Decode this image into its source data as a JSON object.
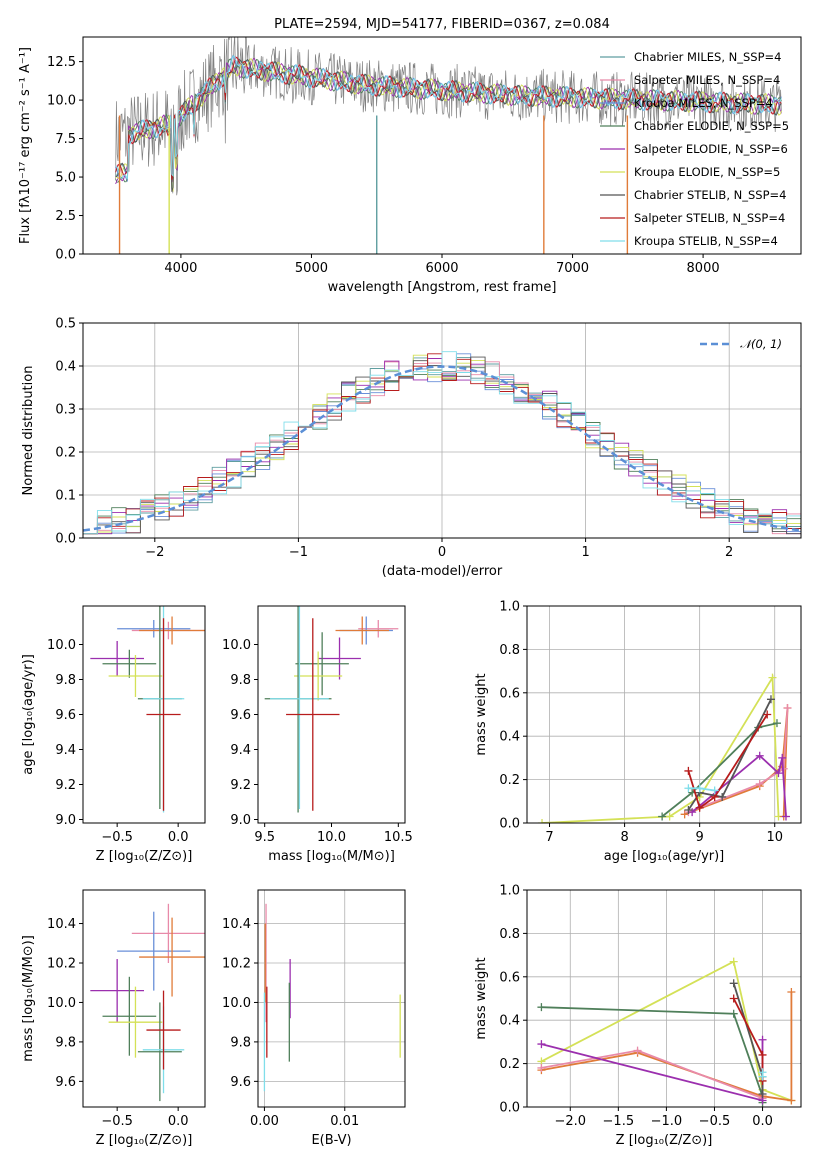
{
  "chart_data": [
    {
      "type": "line",
      "title": "PLATE=2594, MJD=54177, FIBERID=0367, z=0.084",
      "xlabel": "wavelength [Angstrom, rest frame]",
      "ylabel": "Flux [fλ10⁻¹⁷ erg cm⁻² s⁻¹ A⁻¹]",
      "xlim": [
        3250,
        8750
      ],
      "ylim": [
        0,
        14.1
      ],
      "xticks": [
        "4000",
        "5000",
        "6000",
        "7000",
        "8000"
      ],
      "yticks": [
        "0.0",
        "2.5",
        "5.0",
        "7.5",
        "10.0",
        "12.5"
      ],
      "legend": [
        {
          "name": "Chabrier MILES, N_SSP=4",
          "color": "#5f9ea0"
        },
        {
          "name": "Salpeter MILES, N_SSP=4",
          "color": "#e88aa9"
        },
        {
          "name": "Kroupa MILES, N_SSP=4",
          "color": "#6a8fd8"
        },
        {
          "name": "Chabrier ELODIE, N_SSP=5",
          "color": "#4f7f5a"
        },
        {
          "name": "Salpeter ELODIE, N_SSP=6",
          "color": "#9b2fae"
        },
        {
          "name": "Kroupa ELODIE, N_SSP=5",
          "color": "#d4e157"
        },
        {
          "name": "Chabrier STELIB, N_SSP=4",
          "color": "#555555"
        },
        {
          "name": "Salpeter STELIB, N_SSP=4",
          "color": "#b71c1c"
        },
        {
          "name": "Kroupa STELIB, N_SSP=4",
          "color": "#80deea"
        }
      ],
      "legend_position": "top-right"
    },
    {
      "type": "line",
      "xlabel": "(data-model)/error",
      "ylabel": "Normed distribution",
      "xlim": [
        -2.5,
        2.5
      ],
      "ylim": [
        0,
        0.5
      ],
      "xticks": [
        "−2",
        "−1",
        "0",
        "1",
        "2"
      ],
      "yticks": [
        "0.0",
        "0.1",
        "0.2",
        "0.3",
        "0.4",
        "0.5"
      ],
      "series": [
        {
          "name": "𝒩(0, 1)",
          "color": "#5b8fd6",
          "mean": 0,
          "sigma": 1
        }
      ],
      "legend_position": "top-right",
      "grid": true
    },
    {
      "type": "scatter",
      "xlabel": "Z [log₁₀(Z/Z⊙)]",
      "ylabel": "age  [log₁₀(age/yr)]",
      "xlim": [
        -0.78,
        0.22
      ],
      "ylim": [
        8.98,
        10.22
      ],
      "xticks": [
        "−0.5",
        "0.0"
      ],
      "yticks": [
        "9.0",
        "9.2",
        "9.4",
        "9.6",
        "9.8",
        "10.0"
      ],
      "points": [
        {
          "x": -0.08,
          "y": 10.08,
          "xerr": 0.3,
          "yerr": 0.05,
          "color": "#e88aa9"
        },
        {
          "x": -0.2,
          "y": 10.09,
          "xerr": 0.3,
          "yerr": 0.05,
          "color": "#6a8fd8"
        },
        {
          "x": -0.05,
          "y": 10.08,
          "xerr": 0.27,
          "yerr": 0.08,
          "color": "#e07b39"
        },
        {
          "x": -0.5,
          "y": 9.92,
          "xerr": 0.22,
          "yerr": 0.1,
          "color": "#9b2fae"
        },
        {
          "x": -0.4,
          "y": 9.89,
          "xerr": 0.22,
          "yerr": 0.08,
          "color": "#4f7f5a"
        },
        {
          "x": -0.35,
          "y": 9.82,
          "xerr": 0.22,
          "yerr": 0.12,
          "color": "#d4e157"
        },
        {
          "x": -0.15,
          "y": 9.69,
          "xerr": 0.18,
          "yerr": 0.63,
          "color": "#4f7f5a"
        },
        {
          "x": -0.12,
          "y": 9.69,
          "xerr": 0.17,
          "yerr": 0.65,
          "color": "#80deea"
        },
        {
          "x": -0.12,
          "y": 9.6,
          "xerr": 0.14,
          "yerr": 0.55,
          "color": "#b71c1c"
        }
      ]
    },
    {
      "type": "scatter",
      "xlabel": "mass [log₁₀(M/M⊙)]",
      "xlim": [
        9.45,
        10.55
      ],
      "ylim": [
        8.98,
        10.22
      ],
      "xticks": [
        "9.5",
        "10.0",
        "10.5"
      ],
      "yticks": [
        "9.0",
        "9.2",
        "9.4",
        "9.6",
        "9.8",
        "10.0"
      ],
      "points": [
        {
          "x": 10.35,
          "y": 10.09,
          "xerr": 0.15,
          "yerr": 0.05,
          "color": "#e88aa9"
        },
        {
          "x": 10.26,
          "y": 10.08,
          "xerr": 0.2,
          "yerr": 0.08,
          "color": "#6a8fd8"
        },
        {
          "x": 10.23,
          "y": 10.08,
          "xerr": 0.2,
          "yerr": 0.08,
          "color": "#e07b39"
        },
        {
          "x": 10.06,
          "y": 9.92,
          "xerr": 0.16,
          "yerr": 0.12,
          "color": "#9b2fae"
        },
        {
          "x": 9.93,
          "y": 9.89,
          "xerr": 0.2,
          "yerr": 0.18,
          "color": "#4f7f5a"
        },
        {
          "x": 9.9,
          "y": 9.82,
          "xerr": 0.18,
          "yerr": 0.14,
          "color": "#d4e157"
        },
        {
          "x": 9.75,
          "y": 9.69,
          "xerr": 0.25,
          "yerr": 0.65,
          "color": "#4f7f5a"
        },
        {
          "x": 9.76,
          "y": 9.69,
          "xerr": 0.22,
          "yerr": 0.63,
          "color": "#80deea"
        },
        {
          "x": 9.86,
          "y": 9.6,
          "xerr": 0.2,
          "yerr": 0.55,
          "color": "#b71c1c"
        }
      ]
    },
    {
      "type": "line",
      "xlabel": "age  [log₁₀(age/yr)]",
      "ylabel": "mass weight",
      "xlim": [
        6.7,
        10.35
      ],
      "ylim": [
        0,
        1
      ],
      "xticks": [
        "7",
        "8",
        "9",
        "10"
      ],
      "yticks": [
        "0.0",
        "0.2",
        "0.4",
        "0.6",
        "0.8",
        "1.0"
      ],
      "grid": true,
      "series": [
        {
          "color": "#d4e157",
          "x": [
            6.9,
            8.6,
            9.0,
            9.97,
            10.05
          ],
          "y": [
            0.0,
            0.03,
            0.12,
            0.67,
            0.03
          ]
        },
        {
          "color": "#e07b39",
          "x": [
            8.8,
            9.8,
            10.1,
            10.17,
            10.12
          ],
          "y": [
            0.04,
            0.17,
            0.26,
            0.53,
            0.03
          ]
        },
        {
          "color": "#e88aa9",
          "x": [
            8.85,
            9.8,
            10.12,
            10.17
          ],
          "y": [
            0.05,
            0.18,
            0.25,
            0.53
          ]
        },
        {
          "color": "#9b2fae",
          "x": [
            8.9,
            9.8,
            10.05,
            10.1,
            10.15
          ],
          "y": [
            0.05,
            0.31,
            0.23,
            0.3,
            0.03
          ]
        },
        {
          "color": "#4f7f5a",
          "x": [
            8.5,
            8.9,
            9.78,
            10.03
          ],
          "y": [
            0.03,
            0.14,
            0.44,
            0.46
          ]
        },
        {
          "color": "#555555",
          "x": [
            8.85,
            9.0,
            9.3,
            9.95
          ],
          "y": [
            0.06,
            0.14,
            0.12,
            0.57
          ]
        },
        {
          "color": "#b71c1c",
          "x": [
            8.85,
            9.0,
            9.2,
            9.9
          ],
          "y": [
            0.24,
            0.07,
            0.12,
            0.5
          ]
        },
        {
          "color": "#80deea",
          "x": [
            8.85,
            9.0,
            9.2
          ],
          "y": [
            0.16,
            0.16,
            0.15
          ]
        }
      ]
    },
    {
      "type": "scatter",
      "xlabel": "Z [log₁₀(Z/Z⊙)]",
      "ylabel": "mass [log₁₀(M/M⊙)]",
      "xlim": [
        -0.78,
        0.22
      ],
      "ylim": [
        9.47,
        10.57
      ],
      "xticks": [
        "−0.5",
        "0.0"
      ],
      "yticks": [
        "9.6",
        "9.8",
        "10.0",
        "10.2",
        "10.4"
      ],
      "points": [
        {
          "x": -0.08,
          "y": 10.35,
          "xerr": 0.3,
          "yerr": 0.15,
          "color": "#e88aa9"
        },
        {
          "x": -0.2,
          "y": 10.26,
          "xerr": 0.3,
          "yerr": 0.2,
          "color": "#6a8fd8"
        },
        {
          "x": -0.05,
          "y": 10.23,
          "xerr": 0.27,
          "yerr": 0.2,
          "color": "#e07b39"
        },
        {
          "x": -0.5,
          "y": 10.06,
          "xerr": 0.22,
          "yerr": 0.16,
          "color": "#9b2fae"
        },
        {
          "x": -0.4,
          "y": 9.93,
          "xerr": 0.22,
          "yerr": 0.2,
          "color": "#4f7f5a"
        },
        {
          "x": -0.35,
          "y": 9.9,
          "xerr": 0.22,
          "yerr": 0.18,
          "color": "#d4e157"
        },
        {
          "x": -0.15,
          "y": 9.75,
          "xerr": 0.18,
          "yerr": 0.25,
          "color": "#4f7f5a"
        },
        {
          "x": -0.12,
          "y": 9.76,
          "xerr": 0.17,
          "yerr": 0.22,
          "color": "#80deea"
        },
        {
          "x": -0.12,
          "y": 9.86,
          "xerr": 0.14,
          "yerr": 0.2,
          "color": "#b71c1c"
        }
      ]
    },
    {
      "type": "scatter",
      "xlabel": "E(B-V)",
      "xlim": [
        -0.0008,
        0.0175
      ],
      "ylim": [
        9.47,
        10.57
      ],
      "xticks": [
        "0.00",
        "0.01"
      ],
      "yticks": [
        "9.6",
        "9.8",
        "10.0",
        "10.2",
        "10.4"
      ],
      "grid": true,
      "points": [
        {
          "x": 0.0002,
          "y": 10.2,
          "xerr": 0,
          "yerr": 0.3,
          "color": "#e88aa9"
        },
        {
          "x": 0.0001,
          "y": 10.2,
          "xerr": 0,
          "yerr": 0.2,
          "color": "#e07b39"
        },
        {
          "x": 0.0,
          "y": 9.8,
          "xerr": 0,
          "yerr": 0.25,
          "color": "#80deea"
        },
        {
          "x": 0.0003,
          "y": 9.9,
          "xerr": 0,
          "yerr": 0.18,
          "color": "#b71c1c"
        },
        {
          "x": 0.0032,
          "y": 10.07,
          "xerr": 0,
          "yerr": 0.15,
          "color": "#9b2fae"
        },
        {
          "x": 0.0031,
          "y": 9.9,
          "xerr": 0,
          "yerr": 0.2,
          "color": "#4f7f5a"
        },
        {
          "x": 0.0169,
          "y": 9.88,
          "xerr": 0,
          "yerr": 0.16,
          "color": "#d4e157"
        }
      ]
    },
    {
      "type": "line",
      "xlabel": "Z [log₁₀(Z/Z⊙)]",
      "ylabel": "mass weight",
      "xlim": [
        -2.45,
        0.4
      ],
      "ylim": [
        0,
        1
      ],
      "xticks": [
        "−2.0",
        "−1.5",
        "−1.0",
        "−0.5",
        "0.0"
      ],
      "yticks": [
        "0.0",
        "0.2",
        "0.4",
        "0.6",
        "0.8",
        "1.0"
      ],
      "grid": true,
      "series": [
        {
          "color": "#d4e157",
          "x": [
            -2.3,
            -0.3,
            0.0,
            0.3
          ],
          "y": [
            0.21,
            0.67,
            0.08,
            0.03
          ]
        },
        {
          "color": "#4f7f5a",
          "x": [
            -2.3,
            -0.3,
            0.0,
            0.0
          ],
          "y": [
            0.46,
            0.43,
            0.05,
            0.02
          ]
        },
        {
          "color": "#e07b39",
          "x": [
            -2.3,
            -1.3,
            0.0,
            0.3,
            0.3
          ],
          "y": [
            0.17,
            0.25,
            0.05,
            0.03,
            0.53
          ]
        },
        {
          "color": "#e88aa9",
          "x": [
            -2.3,
            -1.3,
            0.0
          ],
          "y": [
            0.18,
            0.26,
            0.04
          ]
        },
        {
          "color": "#9b2fae",
          "x": [
            -2.3,
            0.0,
            0.0
          ],
          "y": [
            0.29,
            0.03,
            0.31
          ]
        },
        {
          "color": "#555555",
          "x": [
            -0.3,
            0.0,
            0.0
          ],
          "y": [
            0.57,
            0.14,
            0.06
          ]
        },
        {
          "color": "#b71c1c",
          "x": [
            -0.3,
            0.0,
            0.0
          ],
          "y": [
            0.5,
            0.24,
            0.12
          ]
        },
        {
          "color": "#80deea",
          "x": [
            0.0,
            0.0
          ],
          "y": [
            0.16,
            0.14
          ]
        }
      ]
    }
  ]
}
